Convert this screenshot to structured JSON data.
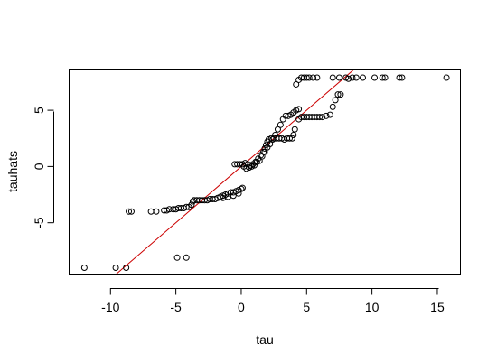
{
  "chart_data": {
    "type": "scatter",
    "title": "",
    "xlabel": "tau",
    "ylabel": "tauhats",
    "xlim": [
      -13.2,
      16.8
    ],
    "ylim": [
      -9.6,
      8.7
    ],
    "x_ticks": [
      -10,
      -5,
      0,
      5,
      10,
      15
    ],
    "y_ticks": [
      -5,
      0,
      5
    ],
    "x_tick_labels": [
      "-10",
      "-5",
      "0",
      "5",
      "10",
      "15"
    ],
    "y_tick_labels": [
      "-5",
      "0",
      "5"
    ],
    "grid": false,
    "legend": "none",
    "reference_line": {
      "intercept": 0,
      "slope": 1,
      "color": "#cc0000"
    },
    "point_style": "open-circle",
    "point_color": "#000000",
    "points": [
      [
        -12.0,
        -9.0
      ],
      [
        -9.6,
        -9.0
      ],
      [
        -8.8,
        -9.0
      ],
      [
        -4.9,
        -8.1
      ],
      [
        -4.2,
        -8.1
      ],
      [
        -8.6,
        -4.0
      ],
      [
        -8.4,
        -4.0
      ],
      [
        -6.9,
        -4.0
      ],
      [
        -6.5,
        -4.0
      ],
      [
        -5.9,
        -3.9
      ],
      [
        -5.7,
        -3.9
      ],
      [
        -5.5,
        -3.8
      ],
      [
        -5.2,
        -3.8
      ],
      [
        -5.0,
        -3.8
      ],
      [
        -4.8,
        -3.7
      ],
      [
        -4.6,
        -3.7
      ],
      [
        -4.4,
        -3.7
      ],
      [
        -4.2,
        -3.6
      ],
      [
        -4.0,
        -3.6
      ],
      [
        -3.8,
        -3.4
      ],
      [
        -3.7,
        -3.1
      ],
      [
        -3.6,
        -3.0
      ],
      [
        -3.4,
        -3.0
      ],
      [
        -3.2,
        -3.0
      ],
      [
        -3.0,
        -3.0
      ],
      [
        -2.8,
        -3.0
      ],
      [
        -2.6,
        -3.0
      ],
      [
        -2.4,
        -2.9
      ],
      [
        -2.2,
        -2.9
      ],
      [
        -2.0,
        -2.9
      ],
      [
        -1.8,
        -2.8
      ],
      [
        -1.6,
        -2.7
      ],
      [
        -1.4,
        -2.6
      ],
      [
        -1.2,
        -2.5
      ],
      [
        -1.0,
        -2.4
      ],
      [
        -0.8,
        -2.3
      ],
      [
        -0.6,
        -2.3
      ],
      [
        -0.4,
        -2.2
      ],
      [
        -0.2,
        -2.1
      ],
      [
        0.0,
        -2.0
      ],
      [
        0.1,
        -1.9
      ],
      [
        -1.4,
        -2.8
      ],
      [
        -1.0,
        -2.7
      ],
      [
        -0.6,
        -2.6
      ],
      [
        -0.2,
        -2.4
      ],
      [
        -0.5,
        0.2
      ],
      [
        -0.3,
        0.2
      ],
      [
        -0.1,
        0.2
      ],
      [
        0.1,
        0.2
      ],
      [
        0.3,
        0.3
      ],
      [
        0.5,
        0.2
      ],
      [
        0.7,
        0.1
      ],
      [
        0.9,
        0.2
      ],
      [
        1.1,
        0.4
      ],
      [
        1.3,
        0.7
      ],
      [
        1.5,
        1.0
      ],
      [
        1.7,
        1.3
      ],
      [
        1.8,
        1.6
      ],
      [
        1.9,
        1.9
      ],
      [
        2.0,
        2.2
      ],
      [
        2.1,
        2.4
      ],
      [
        2.3,
        2.5
      ],
      [
        2.5,
        2.5
      ],
      [
        2.7,
        2.5
      ],
      [
        2.9,
        2.5
      ],
      [
        3.1,
        2.5
      ],
      [
        3.3,
        2.4
      ],
      [
        3.5,
        2.5
      ],
      [
        3.7,
        2.5
      ],
      [
        3.9,
        2.5
      ],
      [
        4.0,
        2.8
      ],
      [
        4.1,
        3.3
      ],
      [
        0.2,
        0.0
      ],
      [
        0.4,
        -0.2
      ],
      [
        0.6,
        -0.1
      ],
      [
        0.8,
        0.0
      ],
      [
        1.0,
        0.1
      ],
      [
        1.2,
        0.4
      ],
      [
        1.4,
        0.5
      ],
      [
        1.6,
        0.9
      ],
      [
        1.8,
        1.3
      ],
      [
        2.0,
        1.7
      ],
      [
        2.2,
        2.0
      ],
      [
        2.4,
        2.4
      ],
      [
        2.6,
        2.8
      ],
      [
        2.8,
        3.3
      ],
      [
        3.0,
        3.7
      ],
      [
        3.2,
        4.2
      ],
      [
        3.4,
        4.5
      ],
      [
        3.6,
        4.5
      ],
      [
        3.8,
        4.6
      ],
      [
        4.0,
        4.8
      ],
      [
        4.2,
        5.0
      ],
      [
        4.4,
        5.1
      ],
      [
        4.4,
        4.2
      ],
      [
        4.6,
        4.4
      ],
      [
        4.8,
        4.4
      ],
      [
        5.0,
        4.4
      ],
      [
        5.2,
        4.4
      ],
      [
        5.4,
        4.4
      ],
      [
        5.6,
        4.4
      ],
      [
        5.8,
        4.4
      ],
      [
        6.0,
        4.4
      ],
      [
        6.2,
        4.4
      ],
      [
        6.5,
        4.5
      ],
      [
        6.8,
        4.6
      ],
      [
        7.0,
        5.3
      ],
      [
        7.2,
        5.9
      ],
      [
        7.4,
        6.4
      ],
      [
        7.6,
        6.4
      ],
      [
        4.2,
        7.3
      ],
      [
        4.4,
        7.7
      ],
      [
        4.6,
        7.9
      ],
      [
        4.8,
        7.9
      ],
      [
        5.0,
        7.9
      ],
      [
        5.2,
        7.9
      ],
      [
        5.5,
        7.9
      ],
      [
        5.8,
        7.9
      ],
      [
        7.0,
        7.9
      ],
      [
        7.5,
        7.9
      ],
      [
        8.0,
        7.9
      ],
      [
        8.2,
        7.8
      ],
      [
        8.5,
        7.9
      ],
      [
        8.8,
        7.9
      ],
      [
        9.3,
        7.9
      ],
      [
        10.2,
        7.9
      ],
      [
        10.8,
        7.9
      ],
      [
        11.0,
        7.9
      ],
      [
        12.1,
        7.9
      ],
      [
        12.3,
        7.9
      ],
      [
        15.7,
        7.9
      ]
    ]
  }
}
